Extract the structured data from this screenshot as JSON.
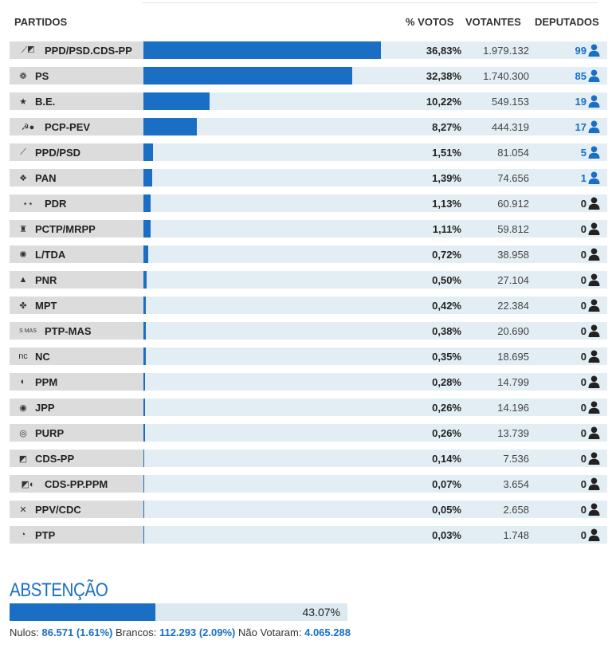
{
  "header": {
    "party": "PARTIDOS",
    "pct": "% VOTOS",
    "votes": "VOTANTES",
    "seats": "DEPUTADOS"
  },
  "colors": {
    "bar": "#1a6fc4",
    "seats_elected": "#1a6fc4",
    "seats_zero": "#222222",
    "row_bg": "#e2eef4",
    "name_bg": "#dcdcdc"
  },
  "parties": [
    {
      "name": "PPD/PSD.CDS-PP",
      "logo": "paf-logo-icon",
      "pct": "36,83%",
      "share": 36.83,
      "votes": "1.979.132",
      "seats": "99"
    },
    {
      "name": "PS",
      "logo": "ps-fist-rose-icon",
      "pct": "32,38%",
      "share": 32.38,
      "votes": "1.740.300",
      "seats": "85"
    },
    {
      "name": "B.E.",
      "logo": "be-star-icon",
      "pct": "10,22%",
      "share": 10.22,
      "votes": "549.153",
      "seats": "19"
    },
    {
      "name": "PCP-PEV",
      "logo": "cdu-hammer-sickle-icon",
      "pct": "8,27%",
      "share": 8.27,
      "votes": "444.319",
      "seats": "17"
    },
    {
      "name": "PPD/PSD",
      "logo": "psd-arrows-icon",
      "pct": "1,51%",
      "share": 1.51,
      "votes": "81.054",
      "seats": "5"
    },
    {
      "name": "PAN",
      "logo": "pan-leaf-icon",
      "pct": "1,39%",
      "share": 1.39,
      "votes": "74.656",
      "seats": "1"
    },
    {
      "name": "PDR",
      "logo": "pdr-stars-icon",
      "pct": "1,13%",
      "share": 1.13,
      "votes": "60.912",
      "seats": "0"
    },
    {
      "name": "PCTP/MRPP",
      "logo": "mrpp-icon",
      "pct": "1,11%",
      "share": 1.11,
      "votes": "59.812",
      "seats": "0"
    },
    {
      "name": "L/TDA",
      "logo": "livre-flower-icon",
      "pct": "0,72%",
      "share": 0.72,
      "votes": "38.958",
      "seats": "0"
    },
    {
      "name": "PNR",
      "logo": "pnr-flame-icon",
      "pct": "0,50%",
      "share": 0.5,
      "votes": "27.104",
      "seats": "0"
    },
    {
      "name": "MPT",
      "logo": "mpt-clover-icon",
      "pct": "0,42%",
      "share": 0.42,
      "votes": "22.384",
      "seats": "0"
    },
    {
      "name": "PTP-MAS",
      "logo": "mas-logo-icon",
      "pct": "0,38%",
      "share": 0.38,
      "votes": "20.690",
      "seats": "0"
    },
    {
      "name": "NC",
      "logo": "nc-logo-icon",
      "pct": "0,35%",
      "share": 0.35,
      "votes": "18.695",
      "seats": "0"
    },
    {
      "name": "PPM",
      "logo": "ppm-logo-icon",
      "pct": "0,28%",
      "share": 0.28,
      "votes": "14.799",
      "seats": "0"
    },
    {
      "name": "JPP",
      "logo": "jpp-logo-icon",
      "pct": "0,26%",
      "share": 0.26,
      "votes": "14.196",
      "seats": "0"
    },
    {
      "name": "PURP",
      "logo": "purp-logo-icon",
      "pct": "0,26%",
      "share": 0.26,
      "votes": "13.739",
      "seats": "0"
    },
    {
      "name": "CDS-PP",
      "logo": "cds-arrow-icon",
      "pct": "0,14%",
      "share": 0.14,
      "votes": "7.536",
      "seats": "0"
    },
    {
      "name": "CDS-PP.PPM",
      "logo": "cds-ppm-logo-icon",
      "pct": "0,07%",
      "share": 0.07,
      "votes": "3.654",
      "seats": "0"
    },
    {
      "name": "PPV/CDC",
      "logo": "ppv-logo-icon",
      "pct": "0,05%",
      "share": 0.05,
      "votes": "2.658",
      "seats": "0"
    },
    {
      "name": "PTP",
      "logo": "ptp-logo-icon",
      "pct": "0,03%",
      "share": 0.03,
      "votes": "1.748",
      "seats": "0"
    }
  ],
  "abstention": {
    "title": "ABSTENÇÃO",
    "pct": "43.07%",
    "share": 43.07
  },
  "footer": {
    "null_label": "Nulos:",
    "null_value": "86.571 (1.61%)",
    "blank_label": "Brancos:",
    "blank_value": "112.293 (2.09%)",
    "nonvoters_label": "Não Votaram:",
    "nonvoters_value": "4.065.288"
  }
}
